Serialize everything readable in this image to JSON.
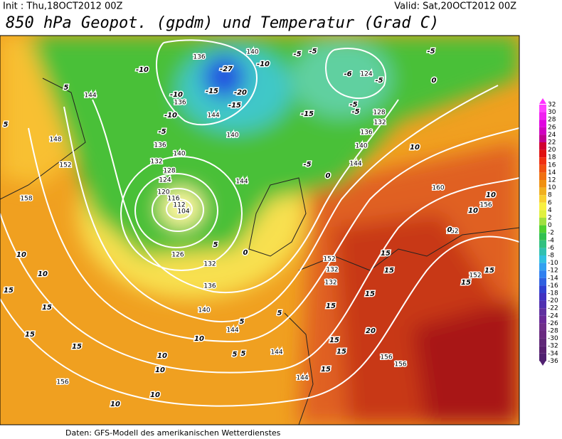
{
  "header": {
    "init": "Init : Thu,18OCT2012 00Z",
    "valid": "Valid: Sat,20OCT2012 00Z",
    "title": "850 hPa Geopot. (gpdm) und Temperatur (Grad C)"
  },
  "colorbar": {
    "labels": [
      32,
      30,
      28,
      26,
      24,
      22,
      20,
      18,
      16,
      14,
      12,
      10,
      8,
      6,
      4,
      2,
      0,
      -2,
      -4,
      -6,
      -8,
      -10,
      -12,
      -14,
      -16,
      -18,
      -20,
      -22,
      -24,
      -26,
      -28,
      -30,
      -32,
      -34,
      -36
    ]
  },
  "map": {
    "geopotential_labels": [
      136,
      140,
      124,
      128,
      132,
      136,
      140,
      144,
      144,
      148,
      152,
      158,
      136,
      140,
      132,
      128,
      124,
      120,
      116,
      112,
      104,
      126,
      132,
      136,
      140,
      144,
      144,
      144,
      152,
      132,
      132,
      156,
      156,
      160,
      156,
      152,
      152,
      156,
      144,
      140,
      144,
      136
    ],
    "temperature_labels": [
      -27,
      -15,
      -20,
      -15,
      -10,
      -10,
      -10,
      -5,
      -10,
      -5,
      -5,
      -5,
      -6,
      -5,
      -5,
      -15,
      -5,
      -5,
      0,
      5,
      5,
      0,
      0,
      0,
      5,
      10,
      10,
      10,
      10,
      10,
      15,
      15,
      15,
      15,
      10,
      10,
      10,
      10,
      10,
      15,
      15,
      15,
      15,
      15,
      15,
      15,
      20,
      15,
      5,
      5,
      5,
      5,
      15
    ]
  },
  "footer": "Daten: GFS-Modell des amerikanischen Wetterdienstes"
}
